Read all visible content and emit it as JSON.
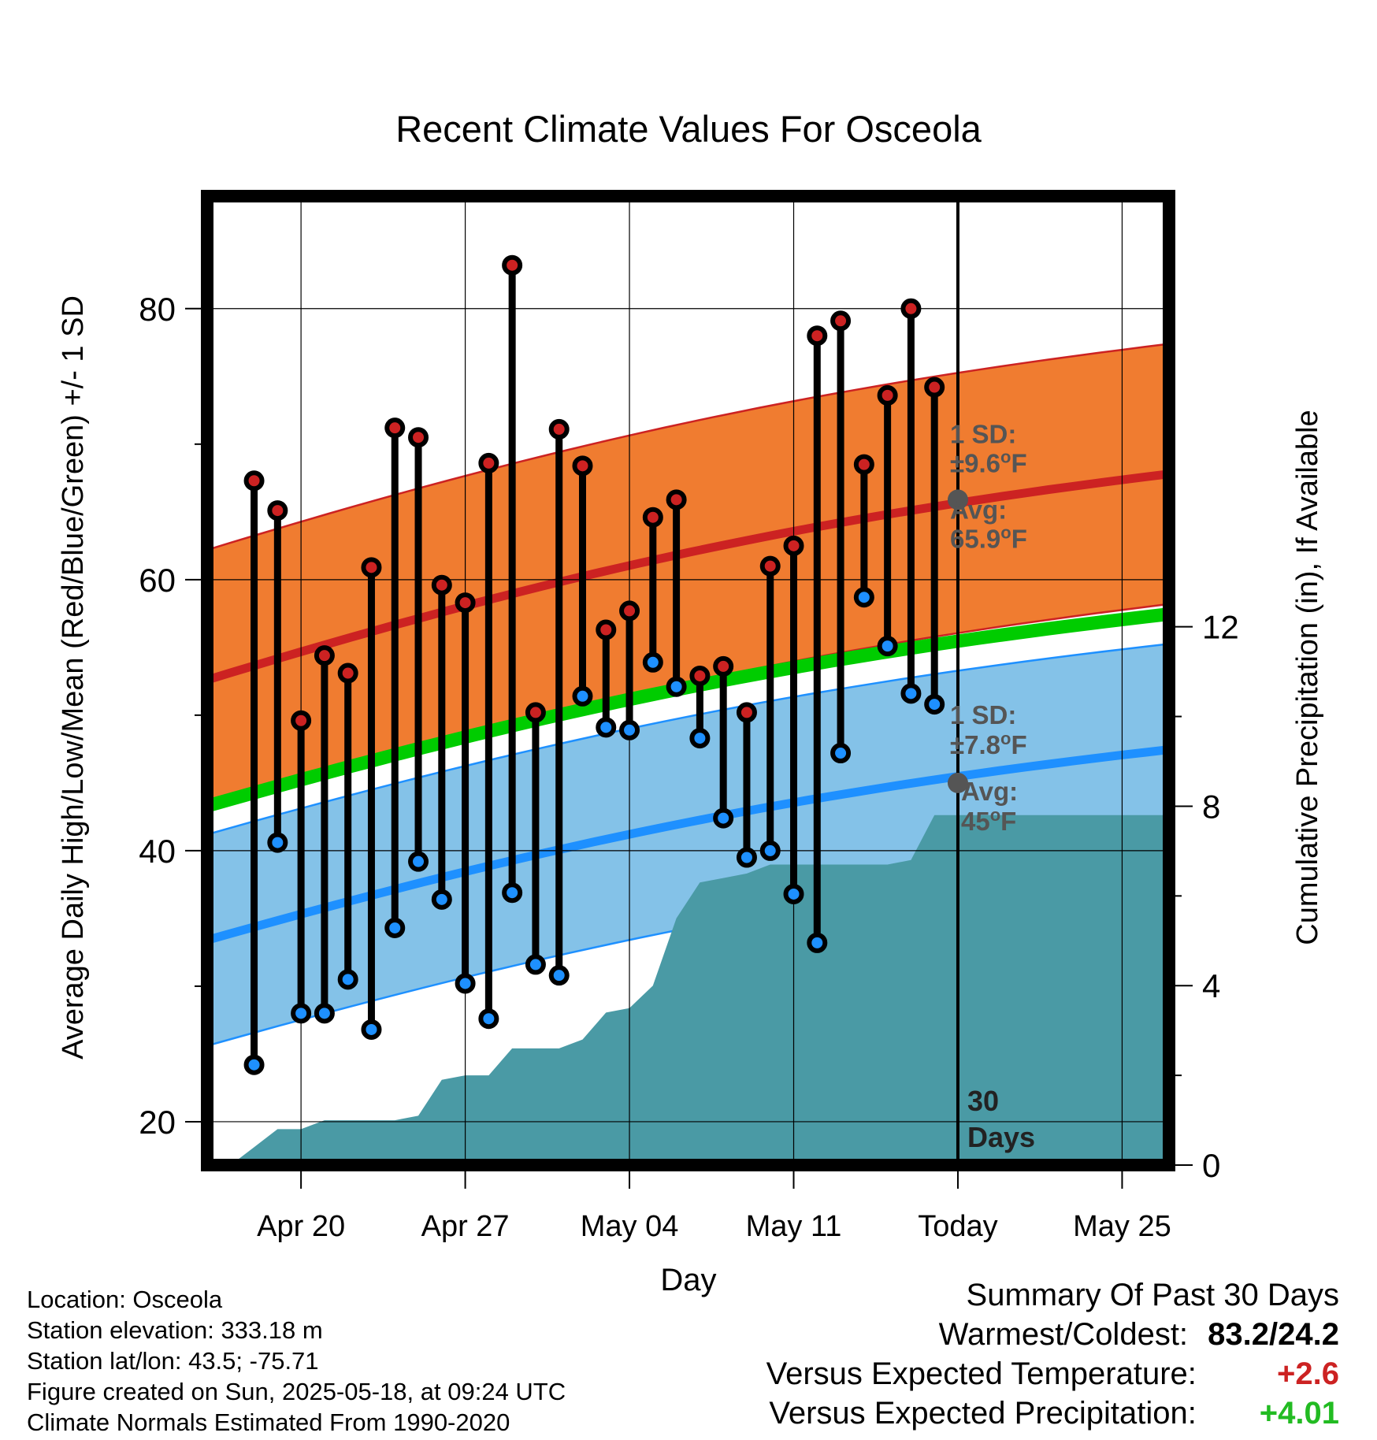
{
  "chart_data": {
    "type": "line",
    "title": "Recent Climate Values For Osceola",
    "xlabel": "Day",
    "ylabel": "Average Daily High/Low/Mean (Red/Blue/Green) +/- 1 SD",
    "y2label": "Cumulative Precipitation (in), If Available",
    "x_tick_labels": [
      "Apr 20",
      "Apr 27",
      "May 04",
      "May 11",
      "Today",
      "May 25"
    ],
    "y_ticks": [
      "20",
      "40",
      "60",
      "80"
    ],
    "y2_ticks": [
      "0",
      "4",
      "8",
      "12"
    ],
    "ylim": [
      16.8,
      88.3
    ],
    "y2lim": [
      0,
      21.6
    ],
    "xlim": [
      "2025-04-16",
      "2025-05-27"
    ],
    "grid": true,
    "today": "2025-05-18",
    "days_label": "30\nDays",
    "dates": [
      "2025-04-18",
      "2025-04-19",
      "2025-04-20",
      "2025-04-21",
      "2025-04-22",
      "2025-04-23",
      "2025-04-24",
      "2025-04-25",
      "2025-04-26",
      "2025-04-27",
      "2025-04-28",
      "2025-04-29",
      "2025-04-30",
      "2025-05-01",
      "2025-05-02",
      "2025-05-03",
      "2025-05-04",
      "2025-05-05",
      "2025-05-06",
      "2025-05-07",
      "2025-05-08",
      "2025-05-09",
      "2025-05-10",
      "2025-05-11",
      "2025-05-12",
      "2025-05-13",
      "2025-05-14",
      "2025-05-15",
      "2025-05-16",
      "2025-05-17"
    ],
    "series": [
      {
        "name": "High",
        "color": "#cc2222",
        "values": [
          67.3,
          65.1,
          49.6,
          54.4,
          53.1,
          60.9,
          71.2,
          70.5,
          59.6,
          58.3,
          68.6,
          83.2,
          50.2,
          71.1,
          68.4,
          56.3,
          57.7,
          64.6,
          65.9,
          52.9,
          53.6,
          50.2,
          61.0,
          62.5,
          78.0,
          79.1,
          68.5,
          73.6,
          80.0,
          74.2
        ]
      },
      {
        "name": "Low",
        "color": "#1e90ff",
        "values": [
          24.2,
          40.6,
          28.0,
          28.0,
          30.5,
          26.8,
          34.3,
          39.2,
          36.4,
          30.2,
          27.6,
          36.9,
          31.6,
          30.8,
          51.4,
          49.1,
          48.9,
          53.9,
          52.1,
          48.3,
          42.4,
          39.5,
          40.0,
          36.8,
          33.2,
          47.2,
          58.7,
          55.1,
          51.6,
          50.8
        ]
      }
    ],
    "normal_band_start": "2025-04-16",
    "normal_band_end": "2025-05-27",
    "normal_high": {
      "color": "#cc2222",
      "band_color": "#f07c30",
      "start": 52.6,
      "end": 68.6,
      "sd": 9.6
    },
    "normal_mean": {
      "color": "#00cc00",
      "start": 43.3,
      "end": 58.2
    },
    "normal_low": {
      "color": "#1e90ff",
      "band_color": "#84c2e8",
      "start": 33.4,
      "end": 48.2,
      "sd": 7.8
    },
    "high_annotation": {
      "sd_label": "1 SD:",
      "sd_value": "±9.6",
      "avg_label": "Avg:",
      "avg_value": "65.9",
      "unit": "oF",
      "avg": 65.9
    },
    "low_annotation": {
      "sd_label": "1 SD:",
      "sd_value": "±7.8",
      "avg_label": "Avg:",
      "avg_value": "45",
      "unit": "oF",
      "avg": 45.0
    },
    "precip": {
      "color": "#4a9aa5",
      "dates": [
        "2025-04-17",
        "2025-04-18",
        "2025-04-19",
        "2025-04-20",
        "2025-04-21",
        "2025-04-22",
        "2025-04-23",
        "2025-04-24",
        "2025-04-25",
        "2025-04-26",
        "2025-04-27",
        "2025-04-28",
        "2025-04-29",
        "2025-04-30",
        "2025-05-01",
        "2025-05-02",
        "2025-05-03",
        "2025-05-04",
        "2025-05-05",
        "2025-05-06",
        "2025-05-07",
        "2025-05-08",
        "2025-05-09",
        "2025-05-10",
        "2025-05-11",
        "2025-05-12",
        "2025-05-13",
        "2025-05-14",
        "2025-05-15",
        "2025-05-16",
        "2025-05-17",
        "2025-05-18",
        "2025-05-27"
      ],
      "values": [
        0,
        0.4,
        0.8,
        0.8,
        1.0,
        1.0,
        1.0,
        1.0,
        1.1,
        1.9,
        2.0,
        2.0,
        2.6,
        2.6,
        2.6,
        2.8,
        3.4,
        3.5,
        4.0,
        5.5,
        6.3,
        6.4,
        6.5,
        6.7,
        6.7,
        6.7,
        6.7,
        6.7,
        6.7,
        6.8,
        7.8,
        7.8,
        7.8
      ]
    }
  },
  "footer": {
    "location": "Location: Osceola",
    "elevation": "Station elevation: 333.18 m",
    "latlon": "Station lat/lon: 43.5; -75.71",
    "created": "Figure created on Sun, 2025-05-18, at 09:24 UTC",
    "normals": "Climate Normals Estimated From 1990-2020"
  },
  "summary": {
    "title": "Summary Of Past 30 Days",
    "warmest_label": "Warmest/Coldest:",
    "warmest_value": "83.2/24.2",
    "temp_label": "Versus Expected Temperature:",
    "temp_value": "+2.6",
    "temp_color": "#cc2222",
    "precip_label": "Versus Expected Precipitation:",
    "precip_value": "+4.01",
    "precip_color": "#22bb22"
  }
}
